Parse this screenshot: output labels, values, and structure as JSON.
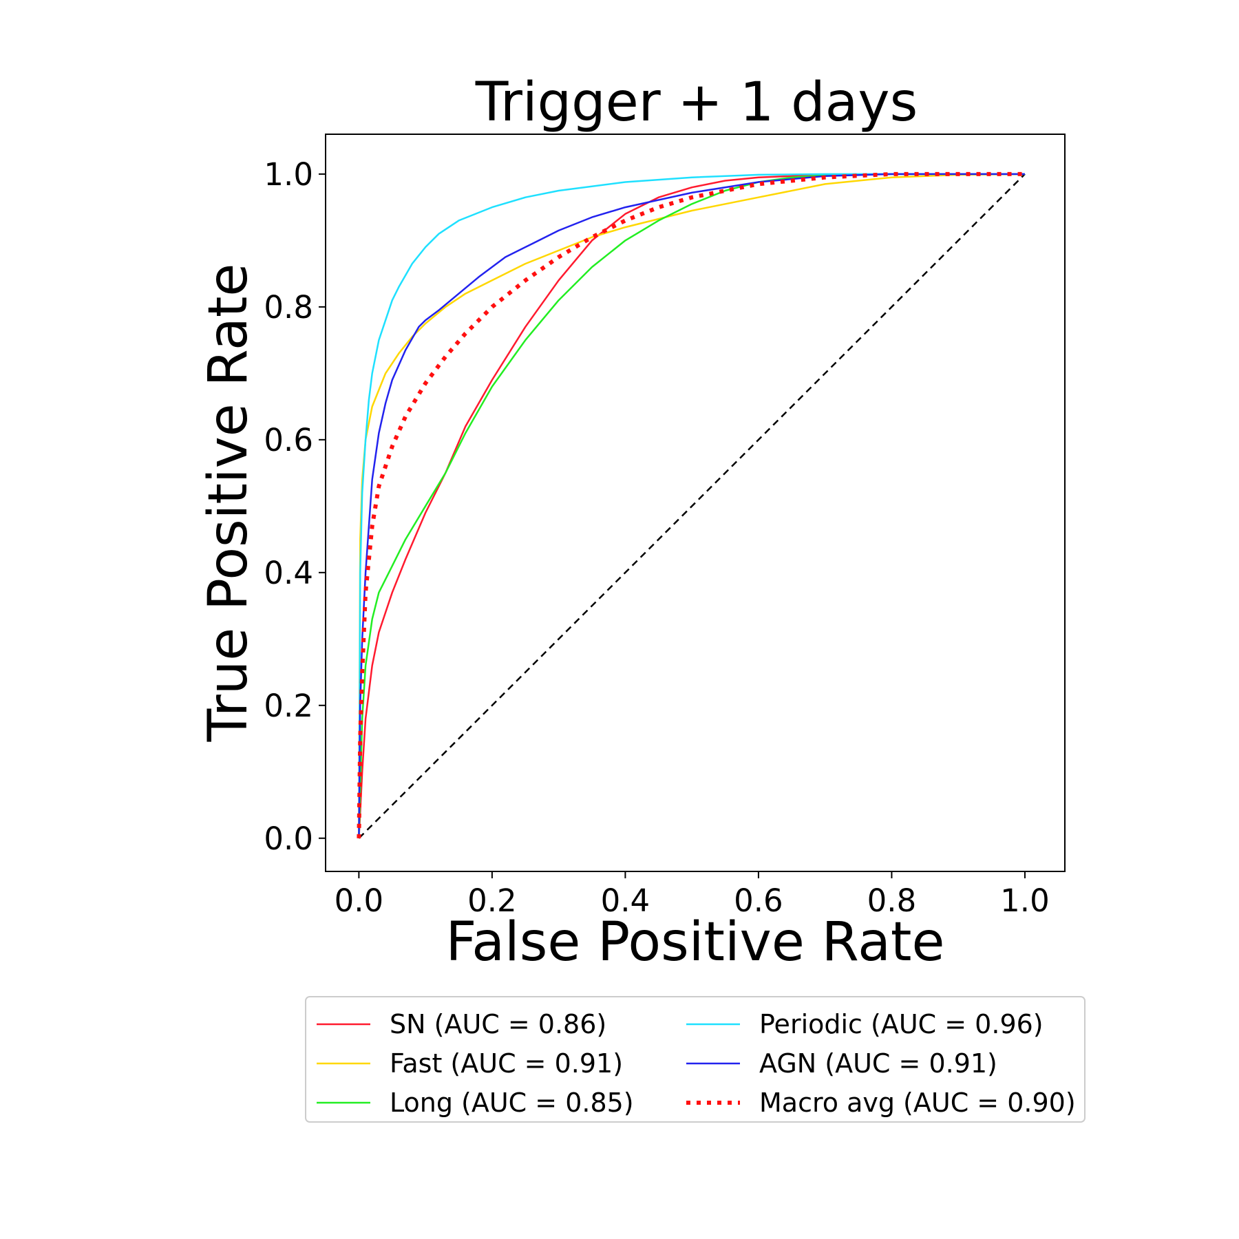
{
  "chart_data": {
    "type": "line",
    "title": "Trigger + 1 days",
    "xlabel": "False Positive Rate",
    "ylabel": "True Positive Rate",
    "xlim": [
      -0.05,
      1.06
    ],
    "ylim": [
      -0.05,
      1.06
    ],
    "xticks": [
      0.0,
      0.2,
      0.4,
      0.6,
      0.8,
      1.0
    ],
    "yticks": [
      0.0,
      0.2,
      0.4,
      0.6,
      0.8,
      1.0
    ],
    "xtick_labels": [
      "0.0",
      "0.2",
      "0.4",
      "0.6",
      "0.8",
      "1.0"
    ],
    "ytick_labels": [
      "0.0",
      "0.2",
      "0.4",
      "0.6",
      "0.8",
      "1.0"
    ],
    "grid": false,
    "legend_placement": "below",
    "series": [
      {
        "name": "SN (AUC = 0.86)",
        "color": "#ff1a2e",
        "style": "solid",
        "x": [
          0.0,
          0.005,
          0.01,
          0.02,
          0.03,
          0.05,
          0.07,
          0.1,
          0.13,
          0.16,
          0.2,
          0.25,
          0.3,
          0.35,
          0.4,
          0.45,
          0.5,
          0.55,
          0.6,
          0.7,
          0.8,
          0.9,
          1.0
        ],
        "y": [
          0.0,
          0.1,
          0.18,
          0.26,
          0.31,
          0.37,
          0.42,
          0.49,
          0.55,
          0.62,
          0.69,
          0.77,
          0.84,
          0.9,
          0.94,
          0.965,
          0.98,
          0.99,
          0.995,
          0.999,
          1.0,
          1.0,
          1.0
        ]
      },
      {
        "name": "Fast (AUC = 0.91)",
        "color": "#ffd700",
        "style": "solid",
        "x": [
          0.0,
          0.002,
          0.005,
          0.01,
          0.02,
          0.04,
          0.06,
          0.08,
          0.1,
          0.13,
          0.16,
          0.2,
          0.25,
          0.3,
          0.35,
          0.4,
          0.5,
          0.6,
          0.7,
          0.8,
          0.9,
          1.0
        ],
        "y": [
          0.0,
          0.45,
          0.54,
          0.6,
          0.65,
          0.7,
          0.73,
          0.755,
          0.775,
          0.8,
          0.82,
          0.84,
          0.865,
          0.885,
          0.905,
          0.92,
          0.945,
          0.965,
          0.985,
          0.995,
          0.999,
          1.0
        ]
      },
      {
        "name": "Long (AUC = 0.85)",
        "color": "#22ee22",
        "style": "solid",
        "x": [
          0.0,
          0.005,
          0.01,
          0.02,
          0.03,
          0.05,
          0.07,
          0.1,
          0.13,
          0.16,
          0.2,
          0.25,
          0.3,
          0.35,
          0.4,
          0.45,
          0.5,
          0.55,
          0.6,
          0.65,
          0.7,
          0.8,
          0.9,
          1.0
        ],
        "y": [
          0.0,
          0.18,
          0.26,
          0.33,
          0.37,
          0.41,
          0.45,
          0.5,
          0.55,
          0.61,
          0.68,
          0.75,
          0.81,
          0.86,
          0.9,
          0.93,
          0.955,
          0.975,
          0.988,
          0.995,
          0.998,
          1.0,
          1.0,
          1.0
        ]
      },
      {
        "name": "Periodic (AUC = 0.96)",
        "color": "#1ee0ff",
        "style": "solid",
        "x": [
          0.0,
          0.002,
          0.005,
          0.01,
          0.015,
          0.02,
          0.03,
          0.04,
          0.05,
          0.06,
          0.08,
          0.1,
          0.12,
          0.15,
          0.2,
          0.25,
          0.3,
          0.4,
          0.5,
          0.6,
          0.7,
          0.8,
          0.9,
          1.0
        ],
        "y": [
          0.0,
          0.4,
          0.52,
          0.6,
          0.66,
          0.7,
          0.75,
          0.78,
          0.81,
          0.83,
          0.865,
          0.89,
          0.91,
          0.93,
          0.95,
          0.965,
          0.975,
          0.988,
          0.995,
          0.999,
          1.0,
          1.0,
          1.0,
          1.0
        ]
      },
      {
        "name": "AGN (AUC = 0.91)",
        "color": "#2222ee",
        "style": "solid",
        "x": [
          0.0,
          0.002,
          0.005,
          0.01,
          0.02,
          0.03,
          0.04,
          0.05,
          0.07,
          0.09,
          0.1,
          0.12,
          0.15,
          0.18,
          0.22,
          0.26,
          0.3,
          0.35,
          0.4,
          0.5,
          0.6,
          0.7,
          0.8,
          0.9,
          1.0
        ],
        "y": [
          0.0,
          0.2,
          0.3,
          0.4,
          0.54,
          0.61,
          0.655,
          0.69,
          0.735,
          0.77,
          0.78,
          0.795,
          0.82,
          0.845,
          0.875,
          0.895,
          0.915,
          0.935,
          0.95,
          0.972,
          0.988,
          0.997,
          1.0,
          1.0,
          1.0
        ]
      },
      {
        "name": "Macro avg (AUC = 0.90)",
        "color": "#ff1010",
        "style": "dotted",
        "x": [
          0.0,
          0.002,
          0.005,
          0.01,
          0.02,
          0.03,
          0.05,
          0.07,
          0.1,
          0.13,
          0.16,
          0.2,
          0.25,
          0.3,
          0.35,
          0.4,
          0.45,
          0.5,
          0.6,
          0.7,
          0.8,
          0.9,
          1.0
        ],
        "y": [
          0.0,
          0.15,
          0.25,
          0.37,
          0.47,
          0.53,
          0.59,
          0.635,
          0.685,
          0.725,
          0.76,
          0.8,
          0.84,
          0.875,
          0.905,
          0.93,
          0.95,
          0.965,
          0.985,
          0.995,
          1.0,
          1.0,
          1.0
        ]
      },
      {
        "name": "",
        "color": "#000000",
        "style": "dashed",
        "x": [
          0.0,
          1.0
        ],
        "y": [
          0.0,
          1.0
        ]
      }
    ]
  }
}
